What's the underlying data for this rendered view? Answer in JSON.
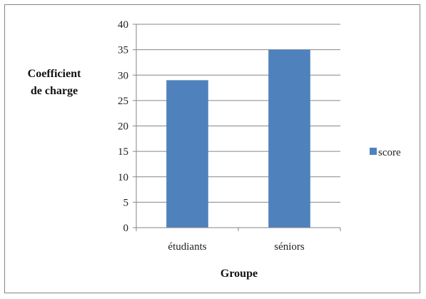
{
  "chart_data": {
    "type": "bar",
    "categories": [
      "étudiants",
      "séniors"
    ],
    "series": [
      {
        "name": "score",
        "values": [
          29,
          35
        ],
        "color": "#4F81BD"
      }
    ],
    "title": "",
    "xlabel": "Groupe",
    "ylabel_lines": [
      "Coefficient",
      "de charge"
    ],
    "ylim": [
      0,
      40
    ],
    "yticks": [
      0,
      5,
      10,
      15,
      20,
      25,
      30,
      35,
      40
    ],
    "grid": true,
    "legend_position": "right"
  }
}
